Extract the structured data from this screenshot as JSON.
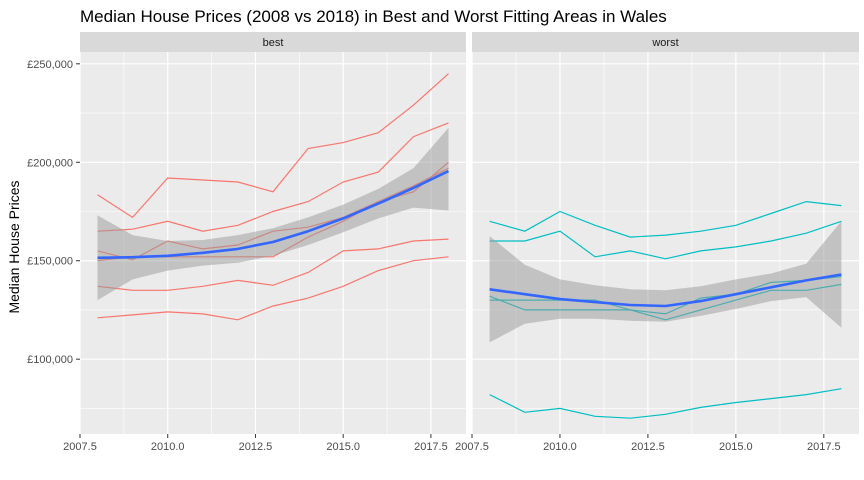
{
  "chart_data": {
    "type": "line",
    "title": "Median House Prices (2008 vs 2018) in Best and Worst Fitting Areas in Wales",
    "xlabel": "",
    "ylabel": "Median House Prices",
    "xlim": [
      2007.5,
      2018.5
    ],
    "ylim": [
      62000,
      256000
    ],
    "x_ticks": [
      2007.5,
      2010.0,
      2012.5,
      2015.0,
      2017.5
    ],
    "x_tick_labels": [
      "2007.5",
      "2010.0",
      "2012.5",
      "2015.0",
      "2017.5"
    ],
    "y_ticks": [
      100000,
      150000,
      200000,
      250000
    ],
    "y_tick_labels": [
      "£100,000",
      "£150,000",
      "£200,000",
      "£250,000"
    ],
    "grid": true,
    "legend": "none",
    "colors": {
      "panel_bg": "#ebebeb",
      "strip_bg": "#d9d9d9",
      "grid": "#ffffff",
      "best": "#f8766d",
      "worst": "#00bfc4",
      "smooth": "#3366ff",
      "ribbon": "#999999"
    },
    "panels": [
      {
        "name": "best",
        "x": [
          2008,
          2009,
          2010,
          2011,
          2012,
          2013,
          2014,
          2015,
          2016,
          2017,
          2018
        ],
        "series": [
          {
            "values": [
              183500,
              172000,
              192000,
              191000,
              190000,
              185000,
              207000,
              210000,
              215000,
              229000,
              245000
            ]
          },
          {
            "values": [
              165000,
              166000,
              170000,
              165000,
              168000,
              175000,
              180000,
              190000,
              195000,
              213000,
              220000
            ]
          },
          {
            "values": [
              155000,
              150500,
              160000,
              156000,
              158000,
              165000,
              167000,
              172000,
              180000,
              185000,
              200000
            ]
          },
          {
            "values": [
              150000,
              152000,
              152000,
              152000,
              152000,
              152000,
              162000,
              170000,
              180000,
              188000,
              197000
            ]
          },
          {
            "values": [
              137000,
              135000,
              135000,
              137000,
              140000,
              137500,
              144000,
              155000,
              156000,
              160000,
              161000
            ]
          },
          {
            "values": [
              121000,
              122500,
              124000,
              123000,
              120000,
              127000,
              131000,
              137000,
              145000,
              150000,
              152000
            ]
          }
        ],
        "smooth": {
          "x": [
            2008,
            2009,
            2010,
            2011,
            2012,
            2013,
            2014,
            2015,
            2016,
            2017,
            2018
          ],
          "fit": [
            151500,
            151800,
            152500,
            154000,
            156000,
            159500,
            165000,
            171500,
            179000,
            187000,
            195500
          ],
          "lower": [
            130000,
            140500,
            145000,
            147500,
            149000,
            152500,
            158000,
            164500,
            171500,
            177000,
            175500
          ],
          "upper": [
            173000,
            163000,
            160000,
            160500,
            163000,
            166500,
            172000,
            178500,
            186500,
            197000,
            217500
          ]
        }
      },
      {
        "name": "worst",
        "x": [
          2008,
          2009,
          2010,
          2011,
          2012,
          2013,
          2014,
          2015,
          2016,
          2017,
          2018
        ],
        "series": [
          {
            "values": [
              170000,
              165000,
              175000,
              168000,
              162000,
              163000,
              165000,
              168000,
              174000,
              180000,
              178000
            ]
          },
          {
            "values": [
              160000,
              160000,
              165000,
              152000,
              155000,
              151000,
              155000,
              157000,
              160000,
              164000,
              170000
            ]
          },
          {
            "values": [
              132000,
              125000,
              125000,
              125000,
              125000,
              120000,
              125000,
              130000,
              135000,
              135000,
              138000
            ]
          },
          {
            "values": [
              130000,
              130000,
              130000,
              130000,
              125000,
              123000,
              131000,
              133000,
              139000,
              140000,
              142000
            ]
          },
          {
            "values": [
              82000,
              73000,
              75000,
              71000,
              70000,
              72000,
              75500,
              78000,
              80000,
              82000,
              85000
            ]
          }
        ],
        "smooth": {
          "x": [
            2008,
            2009,
            2010,
            2011,
            2012,
            2013,
            2014,
            2015,
            2016,
            2017,
            2018
          ],
          "fit": [
            135500,
            133000,
            130500,
            129000,
            127500,
            127000,
            129500,
            133000,
            136500,
            140000,
            143000
          ],
          "lower": [
            108500,
            118000,
            120500,
            120500,
            119500,
            119000,
            122000,
            125500,
            129500,
            131500,
            116000
          ],
          "upper": [
            162500,
            148000,
            140500,
            137500,
            135500,
            135000,
            137000,
            140500,
            143500,
            148500,
            170000
          ]
        }
      }
    ]
  }
}
